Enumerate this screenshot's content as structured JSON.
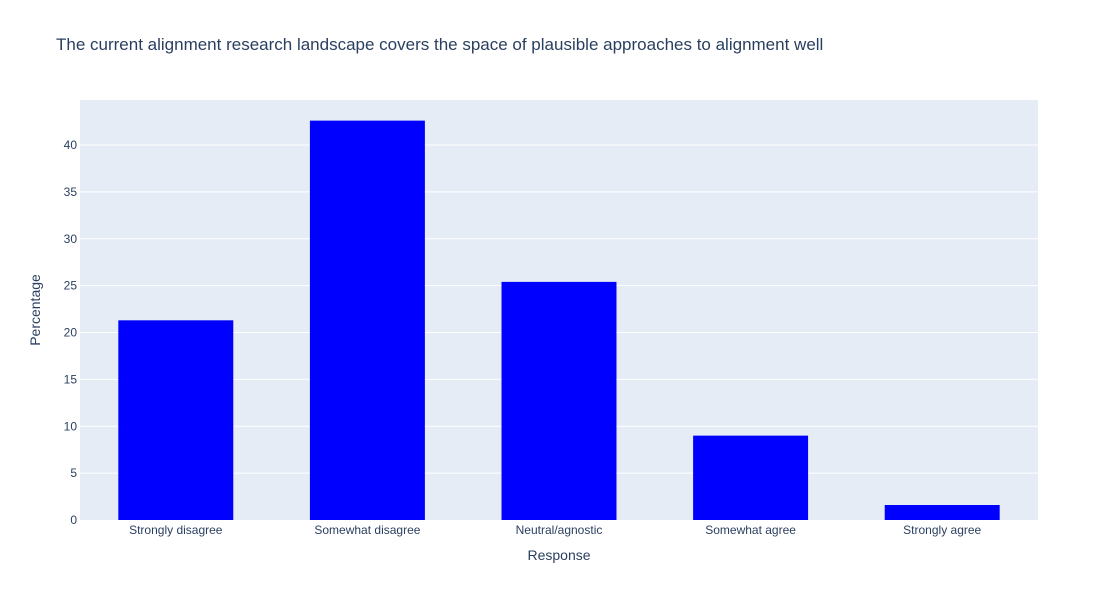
{
  "chart_data": {
    "type": "bar",
    "title": "The current alignment research landscape covers the space of plausible approaches to alignment well",
    "xlabel": "Response",
    "ylabel": "Percentage",
    "categories": [
      "Strongly disagree",
      "Somewhat disagree",
      "Neutral/agnostic",
      "Somewhat agree",
      "Strongly agree"
    ],
    "values": [
      21.3,
      42.6,
      25.4,
      9.0,
      1.6
    ],
    "ylim": [
      0,
      44.8
    ],
    "yticks": [
      0,
      5,
      10,
      15,
      20,
      25,
      30,
      35,
      40
    ],
    "grid": true,
    "bar_color": "#0000ff",
    "plot_background": "#e5ecf6",
    "gridline_color": "#ffffff"
  }
}
